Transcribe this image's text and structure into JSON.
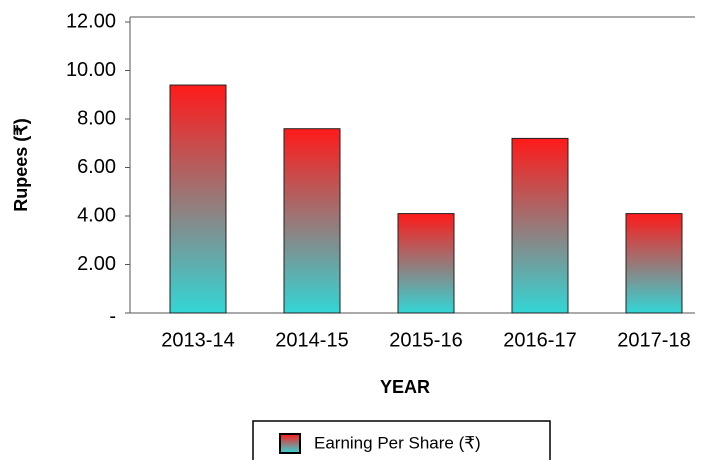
{
  "chart_data": {
    "type": "bar",
    "y_label": "Rupees (₹)",
    "x_label": "YEAR",
    "categories": [
      "2013-14",
      "2014-15",
      "2015-16",
      "2016-17",
      "2017-18"
    ],
    "series": [
      {
        "name": "Earning Per Share (₹)",
        "gradient": [
          "#ff1a1a",
          "#33d6d6"
        ],
        "values": [
          9.4,
          7.6,
          4.1,
          7.2,
          4.1
        ]
      }
    ],
    "ylim": [
      0,
      12
    ],
    "yticks": [
      {
        "value": 0,
        "label": "-"
      },
      {
        "value": 2,
        "label": "2.00"
      },
      {
        "value": 4,
        "label": "4.00"
      },
      {
        "value": 6,
        "label": "6.00"
      },
      {
        "value": 8,
        "label": "8.00"
      },
      {
        "value": 10,
        "label": "10.00"
      },
      {
        "value": 12,
        "label": "12.00"
      }
    ],
    "grid": false
  }
}
